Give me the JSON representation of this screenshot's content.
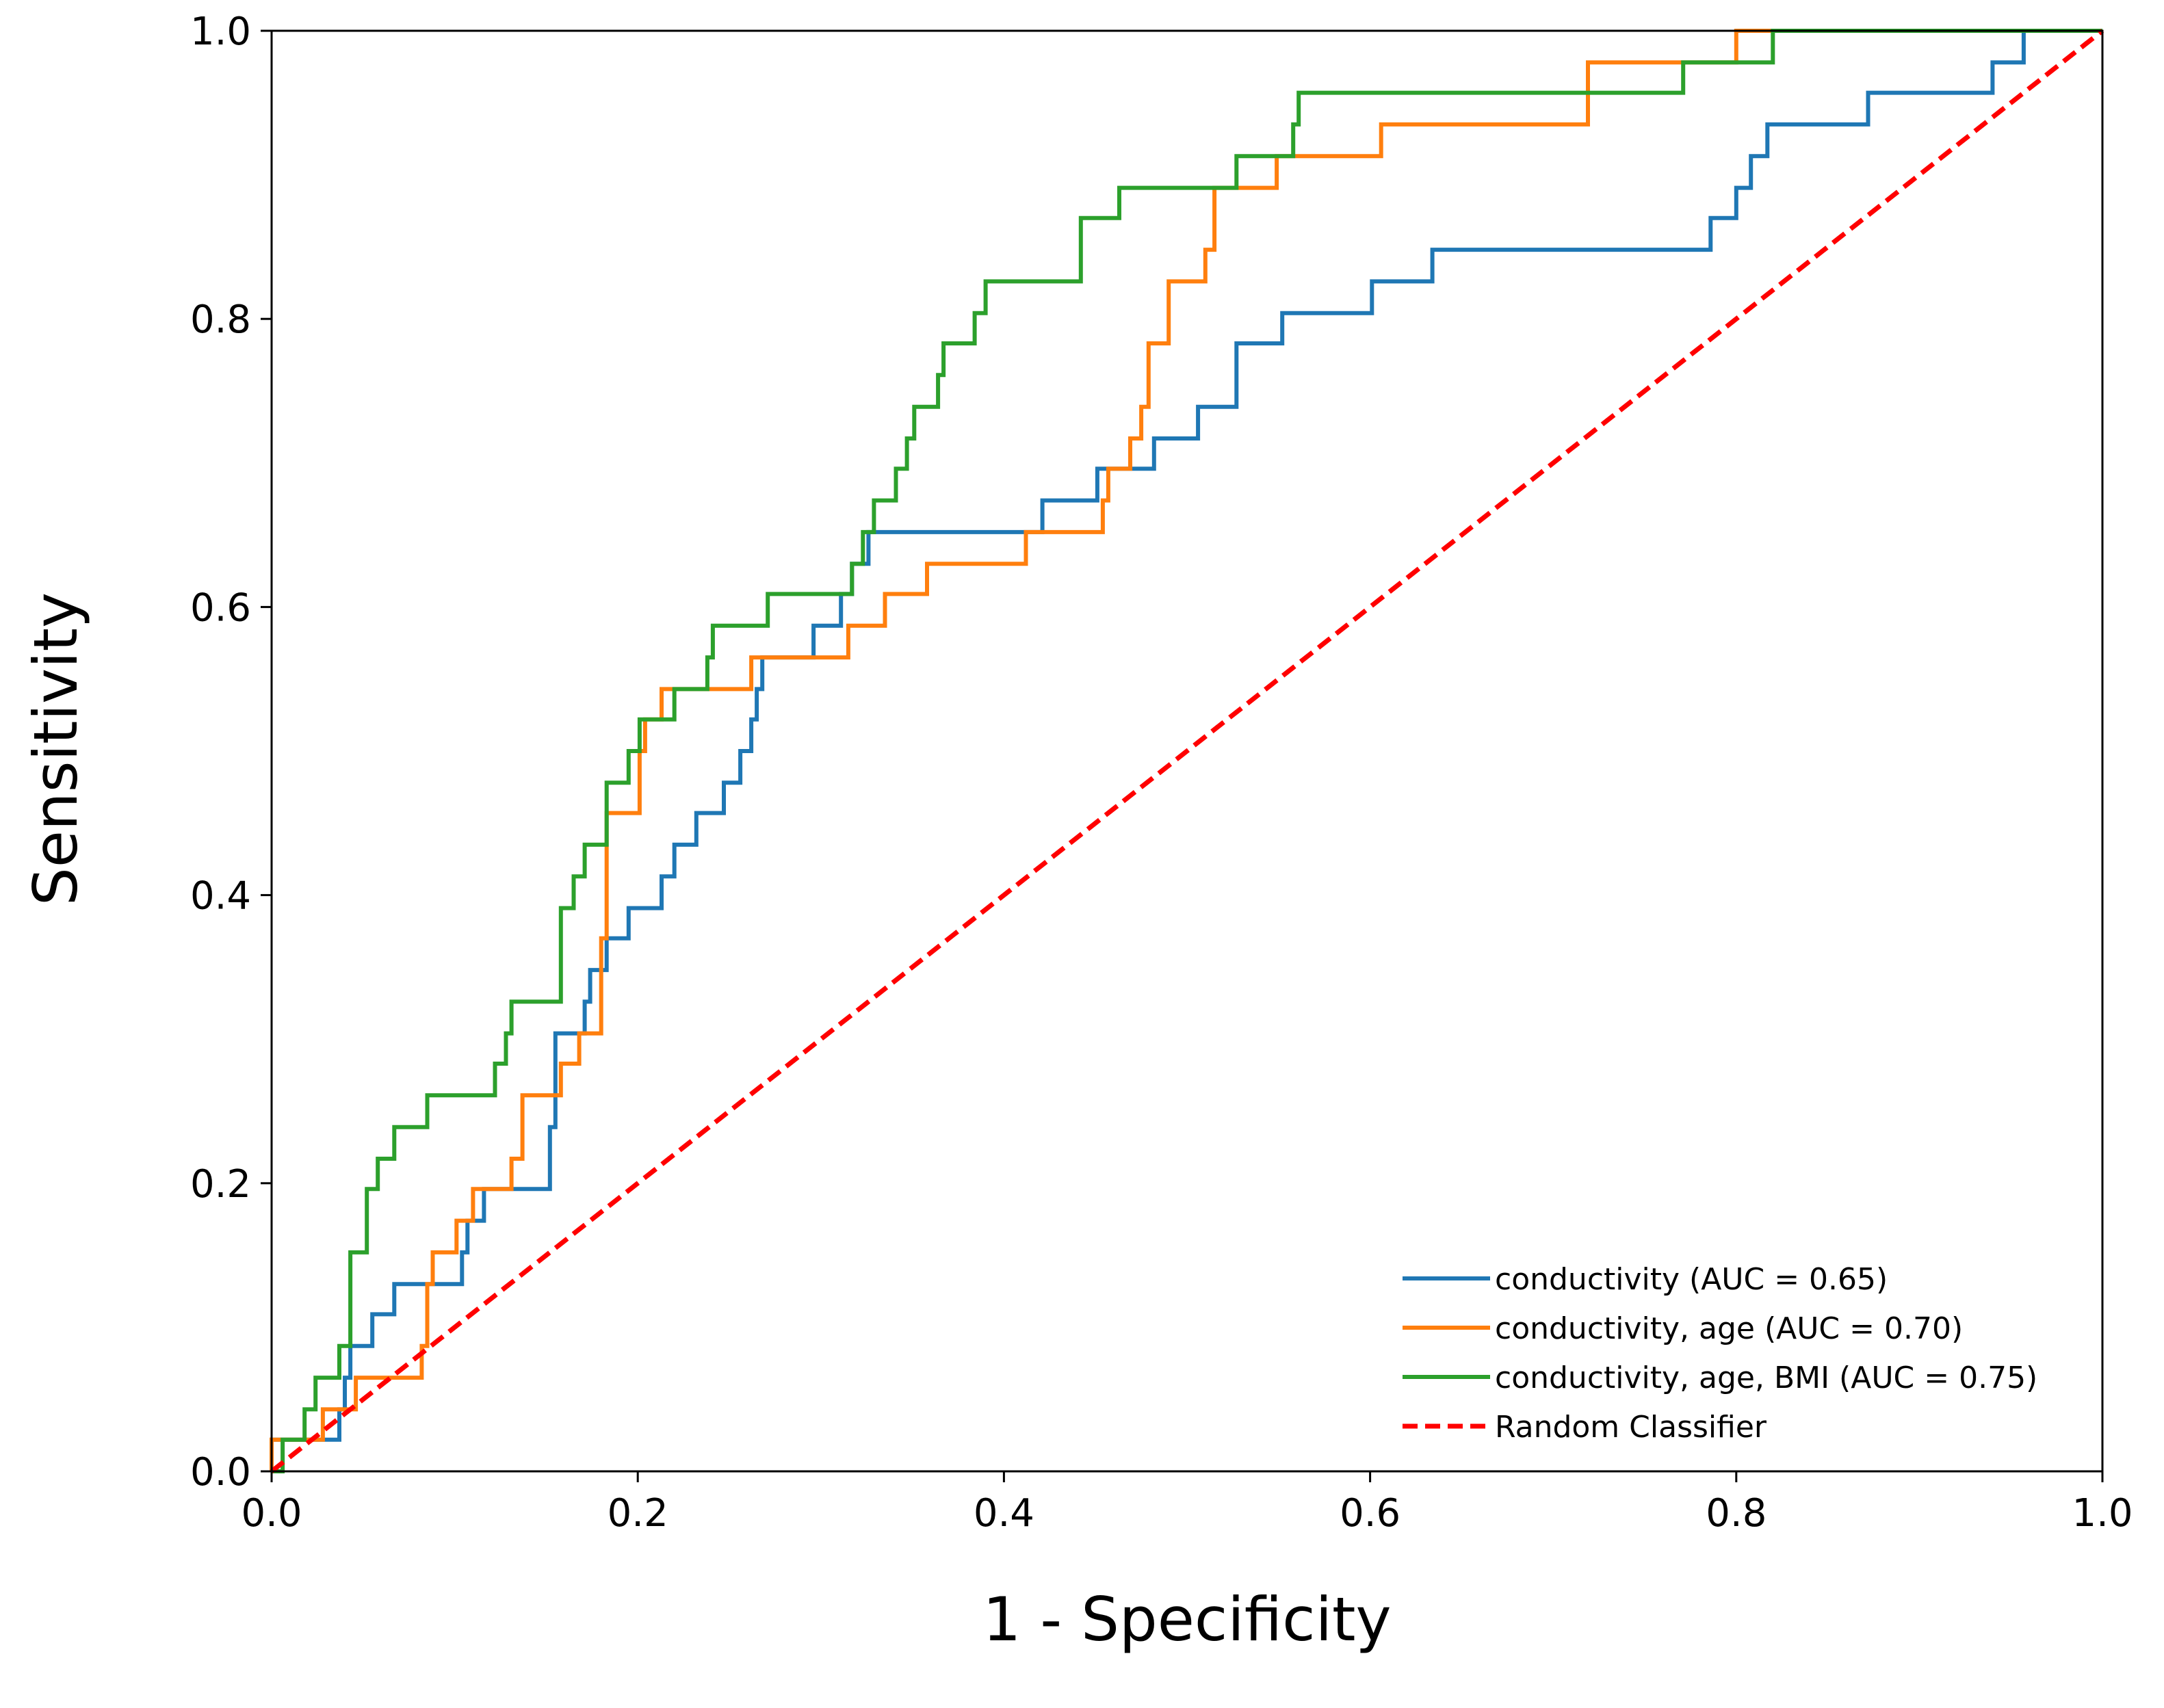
{
  "chart_data": {
    "type": "line",
    "title": "",
    "xlabel": "1 - Specificity",
    "ylabel": "Sensitivity",
    "xlim": [
      0,
      1
    ],
    "ylim": [
      0,
      1
    ],
    "xticks": [
      "0.0",
      "0.2",
      "0.4",
      "0.6",
      "0.8",
      "1.0"
    ],
    "yticks": [
      "0.0",
      "0.2",
      "0.4",
      "0.6",
      "0.8",
      "1.0"
    ],
    "grid": false,
    "legend_position": "lower-right",
    "series": [
      {
        "name": "conductivity (AUC = 0.65)",
        "color": "#1f77b4",
        "style": "solid",
        "points": [
          [
            0,
            0
          ],
          [
            0,
            0.022
          ],
          [
            0.037,
            0.022
          ],
          [
            0.037,
            0.043
          ],
          [
            0.04,
            0.043
          ],
          [
            0.04,
            0.065
          ],
          [
            0.043,
            0.065
          ],
          [
            0.043,
            0.087
          ],
          [
            0.055,
            0.087
          ],
          [
            0.055,
            0.109
          ],
          [
            0.067,
            0.109
          ],
          [
            0.067,
            0.13
          ],
          [
            0.104,
            0.13
          ],
          [
            0.104,
            0.152
          ],
          [
            0.107,
            0.152
          ],
          [
            0.107,
            0.174
          ],
          [
            0.116,
            0.174
          ],
          [
            0.116,
            0.196
          ],
          [
            0.152,
            0.196
          ],
          [
            0.152,
            0.239
          ],
          [
            0.155,
            0.239
          ],
          [
            0.155,
            0.304
          ],
          [
            0.171,
            0.304
          ],
          [
            0.171,
            0.326
          ],
          [
            0.174,
            0.326
          ],
          [
            0.174,
            0.348
          ],
          [
            0.183,
            0.348
          ],
          [
            0.183,
            0.37
          ],
          [
            0.195,
            0.37
          ],
          [
            0.195,
            0.391
          ],
          [
            0.213,
            0.391
          ],
          [
            0.213,
            0.413
          ],
          [
            0.22,
            0.413
          ],
          [
            0.22,
            0.435
          ],
          [
            0.232,
            0.435
          ],
          [
            0.232,
            0.457
          ],
          [
            0.247,
            0.457
          ],
          [
            0.247,
            0.478
          ],
          [
            0.256,
            0.478
          ],
          [
            0.256,
            0.5
          ],
          [
            0.262,
            0.5
          ],
          [
            0.262,
            0.522
          ],
          [
            0.265,
            0.522
          ],
          [
            0.265,
            0.543
          ],
          [
            0.268,
            0.543
          ],
          [
            0.268,
            0.565
          ],
          [
            0.296,
            0.565
          ],
          [
            0.296,
            0.587
          ],
          [
            0.311,
            0.587
          ],
          [
            0.311,
            0.609
          ],
          [
            0.317,
            0.609
          ],
          [
            0.317,
            0.63
          ],
          [
            0.326,
            0.63
          ],
          [
            0.326,
            0.652
          ],
          [
            0.421,
            0.652
          ],
          [
            0.421,
            0.674
          ],
          [
            0.451,
            0.674
          ],
          [
            0.451,
            0.696
          ],
          [
            0.482,
            0.696
          ],
          [
            0.482,
            0.717
          ],
          [
            0.506,
            0.717
          ],
          [
            0.506,
            0.739
          ],
          [
            0.527,
            0.739
          ],
          [
            0.527,
            0.783
          ],
          [
            0.552,
            0.783
          ],
          [
            0.552,
            0.804
          ],
          [
            0.601,
            0.804
          ],
          [
            0.601,
            0.826
          ],
          [
            0.634,
            0.826
          ],
          [
            0.634,
            0.848
          ],
          [
            0.786,
            0.848
          ],
          [
            0.786,
            0.87
          ],
          [
            0.8,
            0.87
          ],
          [
            0.8,
            0.891
          ],
          [
            0.808,
            0.891
          ],
          [
            0.808,
            0.913
          ],
          [
            0.817,
            0.913
          ],
          [
            0.817,
            0.935
          ],
          [
            0.872,
            0.935
          ],
          [
            0.872,
            0.957
          ],
          [
            0.94,
            0.957
          ],
          [
            0.94,
            0.978
          ],
          [
            0.957,
            0.978
          ],
          [
            0.957,
            1
          ],
          [
            1,
            1
          ]
        ]
      },
      {
        "name": "conductivity, age (AUC = 0.70)",
        "color": "#ff7f0e",
        "style": "solid",
        "points": [
          [
            0,
            0
          ],
          [
            0,
            0.022
          ],
          [
            0.028,
            0.022
          ],
          [
            0.028,
            0.043
          ],
          [
            0.046,
            0.043
          ],
          [
            0.046,
            0.065
          ],
          [
            0.082,
            0.065
          ],
          [
            0.082,
            0.087
          ],
          [
            0.085,
            0.087
          ],
          [
            0.085,
            0.13
          ],
          [
            0.088,
            0.13
          ],
          [
            0.088,
            0.152
          ],
          [
            0.101,
            0.152
          ],
          [
            0.101,
            0.174
          ],
          [
            0.11,
            0.174
          ],
          [
            0.11,
            0.196
          ],
          [
            0.131,
            0.196
          ],
          [
            0.131,
            0.217
          ],
          [
            0.137,
            0.217
          ],
          [
            0.137,
            0.261
          ],
          [
            0.158,
            0.261
          ],
          [
            0.158,
            0.283
          ],
          [
            0.168,
            0.283
          ],
          [
            0.168,
            0.304
          ],
          [
            0.18,
            0.304
          ],
          [
            0.18,
            0.37
          ],
          [
            0.183,
            0.37
          ],
          [
            0.183,
            0.457
          ],
          [
            0.201,
            0.457
          ],
          [
            0.201,
            0.5
          ],
          [
            0.204,
            0.5
          ],
          [
            0.204,
            0.522
          ],
          [
            0.213,
            0.522
          ],
          [
            0.213,
            0.543
          ],
          [
            0.262,
            0.543
          ],
          [
            0.262,
            0.565
          ],
          [
            0.315,
            0.565
          ],
          [
            0.315,
            0.587
          ],
          [
            0.335,
            0.587
          ],
          [
            0.335,
            0.609
          ],
          [
            0.358,
            0.609
          ],
          [
            0.358,
            0.63
          ],
          [
            0.412,
            0.63
          ],
          [
            0.412,
            0.652
          ],
          [
            0.454,
            0.652
          ],
          [
            0.454,
            0.674
          ],
          [
            0.457,
            0.674
          ],
          [
            0.457,
            0.696
          ],
          [
            0.469,
            0.696
          ],
          [
            0.469,
            0.717
          ],
          [
            0.475,
            0.717
          ],
          [
            0.475,
            0.739
          ],
          [
            0.479,
            0.739
          ],
          [
            0.479,
            0.783
          ],
          [
            0.49,
            0.783
          ],
          [
            0.49,
            0.826
          ],
          [
            0.51,
            0.826
          ],
          [
            0.51,
            0.848
          ],
          [
            0.515,
            0.848
          ],
          [
            0.515,
            0.891
          ],
          [
            0.549,
            0.891
          ],
          [
            0.549,
            0.913
          ],
          [
            0.606,
            0.913
          ],
          [
            0.606,
            0.935
          ],
          [
            0.719,
            0.935
          ],
          [
            0.719,
            0.978
          ],
          [
            0.8,
            0.978
          ],
          [
            0.8,
            1
          ],
          [
            1,
            1
          ]
        ]
      },
      {
        "name": "conductivity, age, BMI (AUC = 0.75)",
        "color": "#2ca02c",
        "style": "solid",
        "points": [
          [
            0,
            0
          ],
          [
            0.006,
            0
          ],
          [
            0.006,
            0.022
          ],
          [
            0.018,
            0.022
          ],
          [
            0.018,
            0.043
          ],
          [
            0.024,
            0.043
          ],
          [
            0.024,
            0.065
          ],
          [
            0.037,
            0.065
          ],
          [
            0.037,
            0.087
          ],
          [
            0.043,
            0.087
          ],
          [
            0.043,
            0.152
          ],
          [
            0.052,
            0.152
          ],
          [
            0.052,
            0.196
          ],
          [
            0.058,
            0.196
          ],
          [
            0.058,
            0.217
          ],
          [
            0.067,
            0.217
          ],
          [
            0.067,
            0.239
          ],
          [
            0.085,
            0.239
          ],
          [
            0.085,
            0.261
          ],
          [
            0.122,
            0.261
          ],
          [
            0.122,
            0.283
          ],
          [
            0.128,
            0.283
          ],
          [
            0.128,
            0.304
          ],
          [
            0.131,
            0.304
          ],
          [
            0.131,
            0.326
          ],
          [
            0.158,
            0.326
          ],
          [
            0.158,
            0.391
          ],
          [
            0.165,
            0.391
          ],
          [
            0.165,
            0.413
          ],
          [
            0.171,
            0.413
          ],
          [
            0.171,
            0.435
          ],
          [
            0.183,
            0.435
          ],
          [
            0.183,
            0.478
          ],
          [
            0.195,
            0.478
          ],
          [
            0.195,
            0.5
          ],
          [
            0.201,
            0.5
          ],
          [
            0.201,
            0.522
          ],
          [
            0.22,
            0.522
          ],
          [
            0.22,
            0.543
          ],
          [
            0.238,
            0.543
          ],
          [
            0.238,
            0.565
          ],
          [
            0.241,
            0.565
          ],
          [
            0.241,
            0.587
          ],
          [
            0.271,
            0.587
          ],
          [
            0.271,
            0.609
          ],
          [
            0.317,
            0.609
          ],
          [
            0.317,
            0.63
          ],
          [
            0.323,
            0.63
          ],
          [
            0.323,
            0.652
          ],
          [
            0.329,
            0.652
          ],
          [
            0.329,
            0.674
          ],
          [
            0.341,
            0.674
          ],
          [
            0.341,
            0.696
          ],
          [
            0.347,
            0.696
          ],
          [
            0.347,
            0.717
          ],
          [
            0.351,
            0.717
          ],
          [
            0.351,
            0.739
          ],
          [
            0.364,
            0.739
          ],
          [
            0.364,
            0.761
          ],
          [
            0.367,
            0.761
          ],
          [
            0.367,
            0.783
          ],
          [
            0.384,
            0.783
          ],
          [
            0.384,
            0.804
          ],
          [
            0.39,
            0.804
          ],
          [
            0.39,
            0.826
          ],
          [
            0.442,
            0.826
          ],
          [
            0.442,
            0.87
          ],
          [
            0.463,
            0.87
          ],
          [
            0.463,
            0.891
          ],
          [
            0.527,
            0.891
          ],
          [
            0.527,
            0.913
          ],
          [
            0.558,
            0.913
          ],
          [
            0.558,
            0.935
          ],
          [
            0.561,
            0.935
          ],
          [
            0.561,
            0.957
          ],
          [
            0.771,
            0.957
          ],
          [
            0.771,
            0.978
          ],
          [
            0.82,
            0.978
          ],
          [
            0.82,
            1
          ],
          [
            1,
            1
          ]
        ]
      },
      {
        "name": "Random Classifier",
        "color": "#ff0000",
        "style": "dashed",
        "points": [
          [
            0,
            0
          ],
          [
            1,
            1
          ]
        ]
      }
    ]
  }
}
